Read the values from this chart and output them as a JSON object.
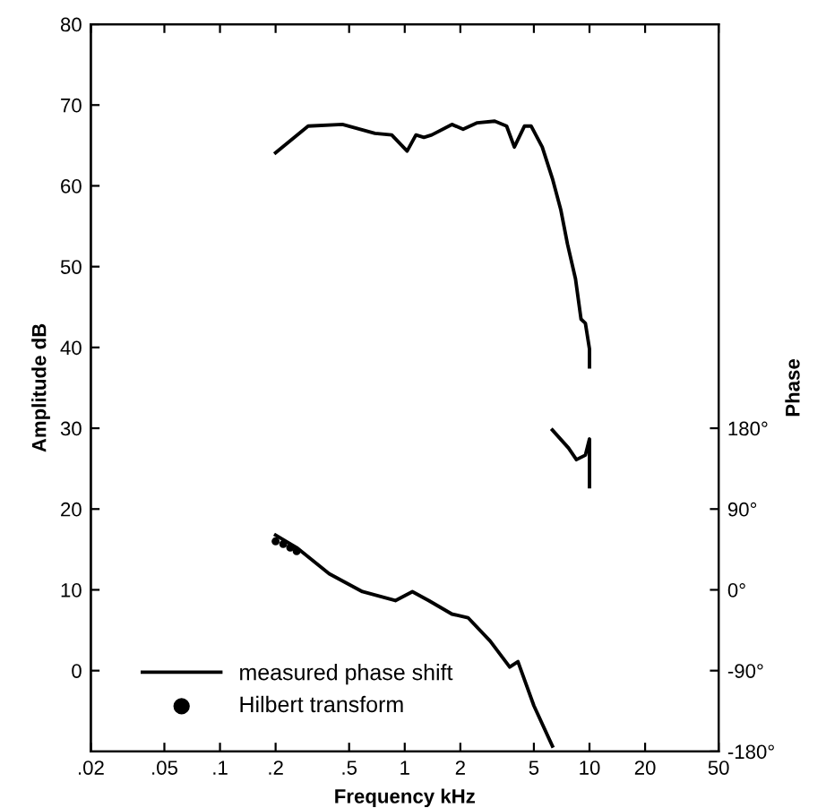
{
  "chart_data": {
    "type": "line",
    "xlabel": "Frequency kHz",
    "ylabel": "Amplitude dB",
    "y2label": "Phase",
    "log": "x",
    "xlim": [
      0.02,
      50
    ],
    "ylim": [
      -10,
      80
    ],
    "y2lim": [
      -180,
      630
    ],
    "xticks": [
      {
        "value": 0.02,
        "label": ".02"
      },
      {
        "value": 0.05,
        "label": ".05"
      },
      {
        "value": 0.1,
        "label": ".1"
      },
      {
        "value": 0.2,
        "label": ".2"
      },
      {
        "value": 0.5,
        "label": ".5"
      },
      1,
      2,
      5,
      10,
      20,
      50
    ],
    "yticks": [
      0,
      10,
      20,
      30,
      40,
      50,
      60,
      70,
      80
    ],
    "y2ticks": [
      {
        "value": -180,
        "label": "-180°"
      },
      {
        "value": -90,
        "label": "-90°"
      },
      {
        "value": 0,
        "label": "0°"
      },
      {
        "value": 90,
        "label": "90°"
      },
      {
        "value": 180,
        "label": "180°"
      }
    ],
    "grid": false,
    "legend": "bottom left",
    "marker": "none",
    "series": [
      {
        "color": "#000000",
        "line_style": "solid",
        "x": [
          0.2,
          0.3,
          0.46,
          0.69,
          0.85,
          1.03,
          1.15,
          1.27,
          1.4,
          1.8,
          2.07,
          2.47,
          3.07,
          3.56,
          3.92,
          4.45,
          4.83,
          5.55,
          6.3,
          7.0,
          7.6,
          8.4,
          9.0,
          9.5,
          10,
          10
        ],
        "values": [
          64.1,
          67.4,
          67.6,
          66.5,
          66.3,
          64.3,
          66.3,
          66,
          66.3,
          67.6,
          67,
          67.8,
          68,
          67.4,
          64.8,
          67.4,
          67.4,
          64.8,
          60.9,
          57,
          52.8,
          48.5,
          43.5,
          43,
          39.8,
          37.6
        ]
      },
      {
        "name": "measured phase shift",
        "color": "#000000",
        "line_style": "solid",
        "axis": "y2",
        "x": [
          0.2,
          0.26,
          0.39,
          0.59,
          0.89,
          1.1,
          1.35,
          1.8,
          2.2,
          2.9,
          3.7,
          4.1,
          5.0,
          6.3,
          null,
          6.3,
          7.7,
          8.5,
          9.5,
          10,
          10
        ],
        "values": [
          61,
          47,
          18,
          -2,
          -12,
          -2,
          -12,
          -27,
          -31,
          -57,
          -86,
          -80,
          -129,
          -174,
          null,
          178,
          158,
          145,
          150,
          168,
          115
        ]
      },
      {
        "name": "Hilbert transform",
        "type": "scatter",
        "marker": "circle",
        "color": "#000000",
        "axis": "y2",
        "x": [
          0.2,
          0.22,
          0.24,
          0.26
        ],
        "values": [
          54,
          51,
          47,
          43
        ]
      }
    ]
  }
}
